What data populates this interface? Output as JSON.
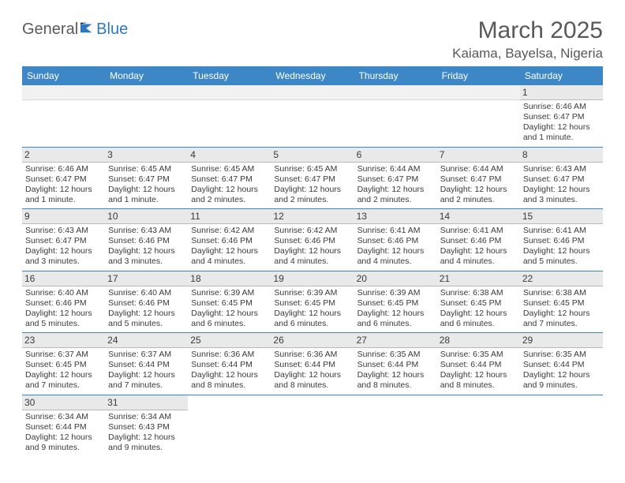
{
  "logo": {
    "general": "General",
    "blue": "Blue"
  },
  "title": "March 2025",
  "location": "Kaiama, Bayelsa, Nigeria",
  "colors": {
    "header_bg": "#3d87c7",
    "header_text": "#ffffff",
    "daynum_bg": "#e9e9e9",
    "border": "#3d87c7",
    "text": "#3a3a3a",
    "title_text": "#595959",
    "logo_gray": "#5a5a5a",
    "logo_blue": "#2d78bf"
  },
  "weekdays": [
    "Sunday",
    "Monday",
    "Tuesday",
    "Wednesday",
    "Thursday",
    "Friday",
    "Saturday"
  ],
  "weeks": [
    [
      {
        "day": "",
        "sunrise": "",
        "sunset": "",
        "daylight": ""
      },
      {
        "day": "",
        "sunrise": "",
        "sunset": "",
        "daylight": ""
      },
      {
        "day": "",
        "sunrise": "",
        "sunset": "",
        "daylight": ""
      },
      {
        "day": "",
        "sunrise": "",
        "sunset": "",
        "daylight": ""
      },
      {
        "day": "",
        "sunrise": "",
        "sunset": "",
        "daylight": ""
      },
      {
        "day": "",
        "sunrise": "",
        "sunset": "",
        "daylight": ""
      },
      {
        "day": "1",
        "sunrise": "Sunrise: 6:46 AM",
        "sunset": "Sunset: 6:47 PM",
        "daylight": "Daylight: 12 hours and 1 minute."
      }
    ],
    [
      {
        "day": "2",
        "sunrise": "Sunrise: 6:46 AM",
        "sunset": "Sunset: 6:47 PM",
        "daylight": "Daylight: 12 hours and 1 minute."
      },
      {
        "day": "3",
        "sunrise": "Sunrise: 6:45 AM",
        "sunset": "Sunset: 6:47 PM",
        "daylight": "Daylight: 12 hours and 1 minute."
      },
      {
        "day": "4",
        "sunrise": "Sunrise: 6:45 AM",
        "sunset": "Sunset: 6:47 PM",
        "daylight": "Daylight: 12 hours and 2 minutes."
      },
      {
        "day": "5",
        "sunrise": "Sunrise: 6:45 AM",
        "sunset": "Sunset: 6:47 PM",
        "daylight": "Daylight: 12 hours and 2 minutes."
      },
      {
        "day": "6",
        "sunrise": "Sunrise: 6:44 AM",
        "sunset": "Sunset: 6:47 PM",
        "daylight": "Daylight: 12 hours and 2 minutes."
      },
      {
        "day": "7",
        "sunrise": "Sunrise: 6:44 AM",
        "sunset": "Sunset: 6:47 PM",
        "daylight": "Daylight: 12 hours and 2 minutes."
      },
      {
        "day": "8",
        "sunrise": "Sunrise: 6:43 AM",
        "sunset": "Sunset: 6:47 PM",
        "daylight": "Daylight: 12 hours and 3 minutes."
      }
    ],
    [
      {
        "day": "9",
        "sunrise": "Sunrise: 6:43 AM",
        "sunset": "Sunset: 6:47 PM",
        "daylight": "Daylight: 12 hours and 3 minutes."
      },
      {
        "day": "10",
        "sunrise": "Sunrise: 6:43 AM",
        "sunset": "Sunset: 6:46 PM",
        "daylight": "Daylight: 12 hours and 3 minutes."
      },
      {
        "day": "11",
        "sunrise": "Sunrise: 6:42 AM",
        "sunset": "Sunset: 6:46 PM",
        "daylight": "Daylight: 12 hours and 4 minutes."
      },
      {
        "day": "12",
        "sunrise": "Sunrise: 6:42 AM",
        "sunset": "Sunset: 6:46 PM",
        "daylight": "Daylight: 12 hours and 4 minutes."
      },
      {
        "day": "13",
        "sunrise": "Sunrise: 6:41 AM",
        "sunset": "Sunset: 6:46 PM",
        "daylight": "Daylight: 12 hours and 4 minutes."
      },
      {
        "day": "14",
        "sunrise": "Sunrise: 6:41 AM",
        "sunset": "Sunset: 6:46 PM",
        "daylight": "Daylight: 12 hours and 4 minutes."
      },
      {
        "day": "15",
        "sunrise": "Sunrise: 6:41 AM",
        "sunset": "Sunset: 6:46 PM",
        "daylight": "Daylight: 12 hours and 5 minutes."
      }
    ],
    [
      {
        "day": "16",
        "sunrise": "Sunrise: 6:40 AM",
        "sunset": "Sunset: 6:46 PM",
        "daylight": "Daylight: 12 hours and 5 minutes."
      },
      {
        "day": "17",
        "sunrise": "Sunrise: 6:40 AM",
        "sunset": "Sunset: 6:46 PM",
        "daylight": "Daylight: 12 hours and 5 minutes."
      },
      {
        "day": "18",
        "sunrise": "Sunrise: 6:39 AM",
        "sunset": "Sunset: 6:45 PM",
        "daylight": "Daylight: 12 hours and 6 minutes."
      },
      {
        "day": "19",
        "sunrise": "Sunrise: 6:39 AM",
        "sunset": "Sunset: 6:45 PM",
        "daylight": "Daylight: 12 hours and 6 minutes."
      },
      {
        "day": "20",
        "sunrise": "Sunrise: 6:39 AM",
        "sunset": "Sunset: 6:45 PM",
        "daylight": "Daylight: 12 hours and 6 minutes."
      },
      {
        "day": "21",
        "sunrise": "Sunrise: 6:38 AM",
        "sunset": "Sunset: 6:45 PM",
        "daylight": "Daylight: 12 hours and 6 minutes."
      },
      {
        "day": "22",
        "sunrise": "Sunrise: 6:38 AM",
        "sunset": "Sunset: 6:45 PM",
        "daylight": "Daylight: 12 hours and 7 minutes."
      }
    ],
    [
      {
        "day": "23",
        "sunrise": "Sunrise: 6:37 AM",
        "sunset": "Sunset: 6:45 PM",
        "daylight": "Daylight: 12 hours and 7 minutes."
      },
      {
        "day": "24",
        "sunrise": "Sunrise: 6:37 AM",
        "sunset": "Sunset: 6:44 PM",
        "daylight": "Daylight: 12 hours and 7 minutes."
      },
      {
        "day": "25",
        "sunrise": "Sunrise: 6:36 AM",
        "sunset": "Sunset: 6:44 PM",
        "daylight": "Daylight: 12 hours and 8 minutes."
      },
      {
        "day": "26",
        "sunrise": "Sunrise: 6:36 AM",
        "sunset": "Sunset: 6:44 PM",
        "daylight": "Daylight: 12 hours and 8 minutes."
      },
      {
        "day": "27",
        "sunrise": "Sunrise: 6:35 AM",
        "sunset": "Sunset: 6:44 PM",
        "daylight": "Daylight: 12 hours and 8 minutes."
      },
      {
        "day": "28",
        "sunrise": "Sunrise: 6:35 AM",
        "sunset": "Sunset: 6:44 PM",
        "daylight": "Daylight: 12 hours and 8 minutes."
      },
      {
        "day": "29",
        "sunrise": "Sunrise: 6:35 AM",
        "sunset": "Sunset: 6:44 PM",
        "daylight": "Daylight: 12 hours and 9 minutes."
      }
    ],
    [
      {
        "day": "30",
        "sunrise": "Sunrise: 6:34 AM",
        "sunset": "Sunset: 6:44 PM",
        "daylight": "Daylight: 12 hours and 9 minutes."
      },
      {
        "day": "31",
        "sunrise": "Sunrise: 6:34 AM",
        "sunset": "Sunset: 6:43 PM",
        "daylight": "Daylight: 12 hours and 9 minutes."
      },
      {
        "day": "",
        "sunrise": "",
        "sunset": "",
        "daylight": ""
      },
      {
        "day": "",
        "sunrise": "",
        "sunset": "",
        "daylight": ""
      },
      {
        "day": "",
        "sunrise": "",
        "sunset": "",
        "daylight": ""
      },
      {
        "day": "",
        "sunrise": "",
        "sunset": "",
        "daylight": ""
      },
      {
        "day": "",
        "sunrise": "",
        "sunset": "",
        "daylight": ""
      }
    ]
  ]
}
